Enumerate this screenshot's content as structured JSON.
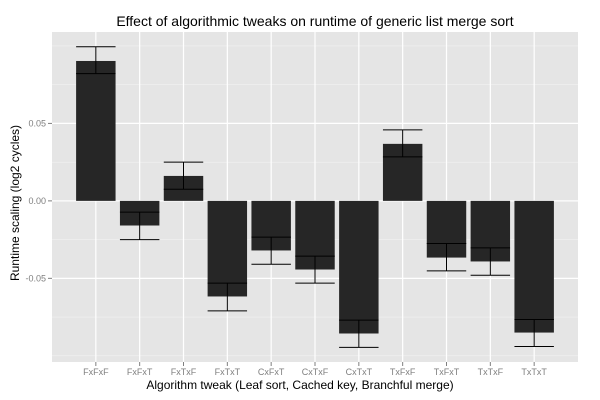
{
  "chart_data": {
    "type": "bar",
    "title": "Effect of algorithmic tweaks on runtime of generic list merge sort",
    "xlabel": "Algorithm tweak (Leaf sort, Cached key, Branchful merge)",
    "ylabel": "Runtime scaling (log2 cycles)",
    "categories": [
      "FxFxF",
      "FxFxT",
      "FxTxF",
      "FxTxT",
      "CxFxT",
      "CxTxF",
      "CxTxT",
      "TxFxF",
      "TxFxT",
      "TxTxF",
      "TxTxT"
    ],
    "values": [
      0.0903,
      -0.0159,
      0.0161,
      -0.0617,
      -0.032,
      -0.0443,
      -0.0856,
      0.0368,
      -0.0366,
      -0.0391,
      -0.085
    ],
    "error_upper": [
      0.0995,
      -0.0073,
      0.025,
      -0.0531,
      -0.0234,
      -0.0357,
      -0.077,
      0.0458,
      -0.0275,
      -0.0303,
      -0.0766
    ],
    "error_lower": [
      0.0821,
      -0.025,
      0.0075,
      -0.071,
      -0.0409,
      -0.0531,
      -0.0946,
      0.0284,
      -0.0452,
      -0.048,
      -0.094
    ],
    "ylim": [
      -0.104,
      0.109
    ],
    "yticks": [
      -0.05,
      0.0,
      0.05
    ],
    "ytick_labels": [
      "-0.05",
      "0.00",
      "0.05"
    ],
    "minor_yticks": [
      -0.1,
      -0.075,
      -0.025,
      0.025,
      0.075,
      0.1
    ],
    "grid": true,
    "colors": {
      "panel": "#e5e5e5",
      "bar": "#262626",
      "grid": "#ffffff",
      "error": "#000000"
    }
  }
}
